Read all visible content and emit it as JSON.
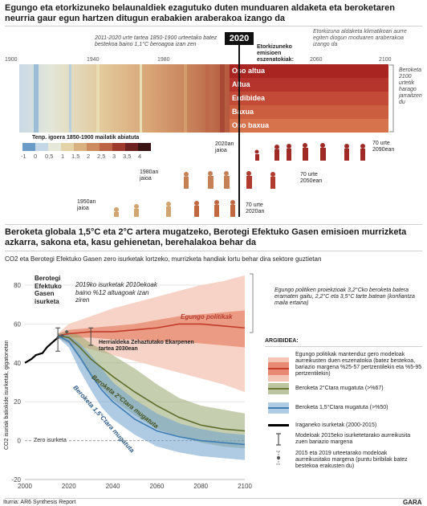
{
  "section1": {
    "title": "Egungo eta etorkizuneko belaunaldiek ezagutuko duten munduaren aldaketa eta beroketaren neurria gaur egun hartzen ditugun erabakien araberakoa izango da",
    "years": [
      "1900",
      "1940",
      "1980",
      "2020",
      "2060",
      "2100"
    ],
    "note_2011": "2011-2020 urte tartea 1850-1900 urteetako batez bestekoa baino 1,1°C beroagoa izan zen",
    "current_year": "2020",
    "scenario_label": "Etorkizuneko emisioen eszenatokiak:",
    "future_note": "Etorkizuna aldaketa klimatikoari aurre egiten diogun moduaren araberakoa izango da",
    "levels": [
      {
        "label": "Oso altua",
        "color": "#a82522"
      },
      {
        "label": "Altua",
        "color": "#b5352c"
      },
      {
        "label": "Erdibidea",
        "color": "#c24a36"
      },
      {
        "label": "Baxua",
        "color": "#cc5e40"
      },
      {
        "label": "Oso baxua",
        "color": "#d6734d"
      }
    ],
    "right_note": "Beroketa 2100 urtetik harago jarraitzen du",
    "colorbar_title": "Tenp. igoera 1850-1900 mailatik abiatuta",
    "colorbar_ticks": [
      "-1",
      "0",
      "0,5",
      "1",
      "1,5",
      "2",
      "2,5",
      "3",
      "3,5",
      "4"
    ],
    "generations": [
      {
        "born": "1950an jaioa",
        "age": "70 urte 2020an"
      },
      {
        "born": "1980an jaioa",
        "age": "70 urte 2050ean"
      },
      {
        "born": "2020an jaioa",
        "age": "70 urte 2090ean"
      }
    ]
  },
  "section2": {
    "title": "Beroketa globala 1,5°C eta 2°C artera mugatzeko, Berotegi Efektuko Gasen emisioen murrizketa azkarra, sakona eta, kasu gehienetan, berehalakoa behar da",
    "subtitle": "CO2 eta Berotegi Efektuko Gasen zero isurketak lortzeko, murrizketa handiak lortu behar dira sektore guztietan",
    "ylabel": "CO2 isuriak baliokide isurketak, gigatonetan",
    "zero_label": "Zero isurketa",
    "ann_ghg": "Berotegi Efektuko Gasen isurketa",
    "ann_2019": "2019ko isurketak 2010ekoak baino %12 altuagoak izan ziren",
    "ann_herr": "Herrialdeka Zehaztutako Ekarpenen tartea 2030ean",
    "label_current": "Egungo politikak",
    "label_2c": "Beroketa 2°Ctara mugatuta",
    "label_15c": "Beroketa 1,5°Ctara mugatuta",
    "ann_proj": "Egungo politiken proiekzioak 3,2°Cko beroketa batera eramaten gaitu, 2,2°C eta 3,5°C tarte batean (konfiantza maila ertaina)",
    "legend_title": "ARGIBIDEA:",
    "legend": [
      {
        "text": "Egungo politikak mantenduz gero modeloak aurreikusten duen eszenatokia (batez bestekoa, bariazio margena %25-57 pertzentilekin eta %5-95 pertzentilekin)"
      },
      {
        "text": "Beroketa 2°Ctara mugatuta (>%67)"
      },
      {
        "text": "Beroketa 1,5°Ctara mugatuta (>%50)"
      },
      {
        "text": "Iraganeko isurketak (2000-2015)"
      },
      {
        "text": "Modeloak 2015eko isurketetarako aurreikusita zuen bariazio margena"
      },
      {
        "text": "2015 eta 2019 urteetarako modeloak aurreikusitako margena (puntu biribilak batez bestekoa erakusten du)"
      }
    ],
    "source": "Iturria: AR6 Synthesis Report",
    "brand": "GARA"
  },
  "chart_data": {
    "type": "area",
    "xlim": [
      2000,
      2100
    ],
    "ylim": [
      -20,
      80
    ],
    "xticks": [
      2000,
      2020,
      2040,
      2060,
      2080,
      2100
    ],
    "yticks": [
      -20,
      0,
      20,
      40,
      60,
      80
    ],
    "series": [
      {
        "name": "Iraganeko isurketak",
        "x": [
          2000,
          2003,
          2005,
          2008,
          2010,
          2012,
          2015
        ],
        "y": [
          40,
          42,
          44,
          45,
          48,
          50,
          53
        ],
        "color": "#000000"
      },
      {
        "name": "Egungo politikak",
        "x": [
          2015,
          2020,
          2030,
          2040,
          2050,
          2060,
          2070,
          2080,
          2090,
          2100
        ],
        "y": [
          54,
          55,
          56,
          56,
          57,
          58,
          60,
          60,
          59,
          58
        ],
        "p25": [
          54,
          53,
          53,
          52,
          52,
          51,
          51,
          50,
          49,
          48
        ],
        "p75": [
          55,
          57,
          58,
          59,
          60,
          62,
          64,
          65,
          66,
          67
        ],
        "p5": [
          53,
          50,
          47,
          44,
          41,
          38,
          35,
          32,
          29,
          25
        ],
        "p95": [
          55,
          60,
          64,
          68,
          71,
          74,
          77,
          80,
          82,
          85
        ],
        "color": "#d9614a"
      },
      {
        "name": "Beroketa 2°Ctara mugatuta",
        "x": [
          2015,
          2020,
          2025,
          2030,
          2040,
          2050,
          2060,
          2070,
          2080,
          2090,
          2100
        ],
        "y": [
          54,
          53,
          48,
          42,
          33,
          25,
          18,
          12,
          8,
          6,
          5
        ],
        "low": [
          53,
          50,
          42,
          33,
          21,
          13,
          6,
          2,
          -1,
          -3,
          -4
        ],
        "high": [
          55,
          56,
          54,
          50,
          44,
          37,
          29,
          22,
          18,
          16,
          14
        ],
        "color": "#7a8a44"
      },
      {
        "name": "Beroketa 1,5°Ctara mugatuta",
        "x": [
          2015,
          2020,
          2025,
          2030,
          2035,
          2040,
          2050,
          2060,
          2070,
          2080,
          2090,
          2100
        ],
        "y": [
          54,
          51,
          43,
          34,
          26,
          20,
          11,
          5,
          2,
          0,
          -1,
          -2
        ],
        "low": [
          53,
          48,
          36,
          26,
          17,
          11,
          3,
          -3,
          -6,
          -8,
          -9,
          -10
        ],
        "high": [
          55,
          54,
          50,
          44,
          37,
          30,
          21,
          14,
          9,
          6,
          4,
          3
        ],
        "color": "#5f93c4"
      }
    ],
    "ndc_2030": {
      "x": 2030,
      "low": 49,
      "high": 58
    },
    "model_2015_range": {
      "x": 2015,
      "low": 46,
      "high": 58
    },
    "points_2015_2019": [
      {
        "x": 2015,
        "y": 53
      },
      {
        "x": 2017,
        "y": 54
      },
      {
        "x": 2019,
        "y": 56
      }
    ]
  }
}
